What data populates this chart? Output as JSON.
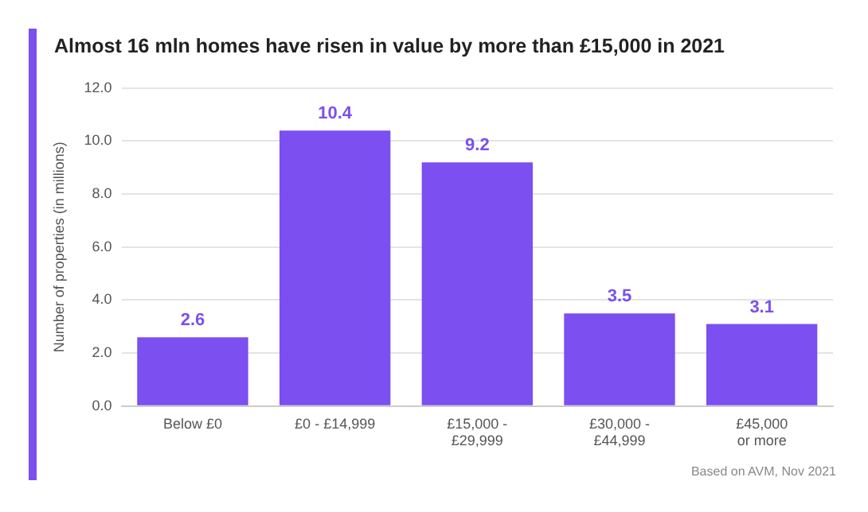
{
  "chart_data": {
    "type": "bar",
    "title": "Almost 16 mln homes have risen in value by more than £15,000 in 2021",
    "categories": [
      "Below £0",
      "£0 - £14,999",
      "£15,000 - £29,999",
      "£30,000 - £44,999",
      "£45,000 or more"
    ],
    "values": [
      2.6,
      10.4,
      9.2,
      3.5,
      3.1
    ],
    "color": "#7b4ff0",
    "ylabel": "Number of properties (in millions)",
    "ylim": [
      0,
      12
    ],
    "yticks": [
      {
        "value": 0,
        "label": "0.0"
      },
      {
        "value": 2,
        "label": "2.0"
      },
      {
        "value": 4,
        "label": "4.0"
      },
      {
        "value": 6,
        "label": "6.0"
      },
      {
        "value": 8,
        "label": "8.0"
      },
      {
        "value": 10,
        "label": "10.0"
      },
      {
        "value": 12,
        "label": "12.0"
      }
    ],
    "grid": "y",
    "data_labels": true,
    "legend": false,
    "annotations": [
      "Based on AVM, Nov 2021"
    ]
  }
}
